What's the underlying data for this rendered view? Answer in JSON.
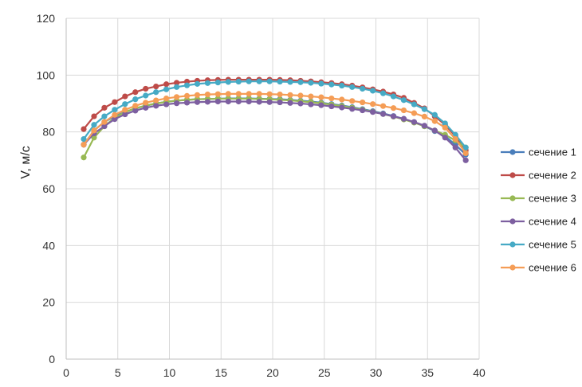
{
  "chart_data": {
    "type": "line",
    "title": "",
    "xlabel": "",
    "ylabel": "V, м/с",
    "xlim": [
      0,
      40
    ],
    "ylim": [
      0,
      120
    ],
    "xticks": [
      0,
      5,
      10,
      15,
      20,
      25,
      30,
      35,
      40
    ],
    "yticks": [
      0,
      20,
      40,
      60,
      80,
      100,
      120
    ],
    "grid": "vertical and horizontal gridlines",
    "legend_position": "right",
    "x": [
      1.7,
      2.7,
      3.7,
      4.7,
      5.7,
      6.7,
      7.7,
      8.7,
      9.7,
      10.7,
      11.7,
      12.7,
      13.7,
      14.7,
      15.7,
      16.7,
      17.7,
      18.7,
      19.7,
      20.7,
      21.7,
      22.7,
      23.7,
      24.7,
      25.7,
      26.7,
      27.7,
      28.7,
      29.7,
      30.7,
      31.7,
      32.7,
      33.7,
      34.7,
      35.7,
      36.7,
      37.7,
      38.7
    ],
    "series": [
      {
        "name": "сечение 1",
        "color": "#4a7ebb",
        "values": [
          75.5,
          80.5,
          83.5,
          85.5,
          87,
          88.3,
          89.2,
          90,
          90.6,
          91,
          91.3,
          91.5,
          91.6,
          91.7,
          91.8,
          91.8,
          91.8,
          91.7,
          91.6,
          91.5,
          91.3,
          91,
          90.7,
          90.3,
          89.8,
          89.3,
          88.7,
          88,
          87.3,
          86.5,
          85.6,
          84.6,
          83.4,
          82,
          80.3,
          78.5,
          75.5,
          72
        ]
      },
      {
        "name": "сечение 2",
        "color": "#be4b48",
        "values": [
          81,
          85.5,
          88.5,
          90.5,
          92.5,
          94,
          95.2,
          96,
          96.8,
          97.3,
          97.7,
          98,
          98.2,
          98.3,
          98.4,
          98.4,
          98.4,
          98.4,
          98.4,
          98.3,
          98.2,
          98,
          97.8,
          97.5,
          97.2,
          96.8,
          96.3,
          95.7,
          95,
          94.2,
          93.2,
          92,
          90.2,
          88.3,
          85.5,
          82.5,
          78.5,
          73.5
        ]
      },
      {
        "name": "сечение 3",
        "color": "#98b954",
        "values": [
          71,
          78,
          82,
          85,
          87,
          88.3,
          89.3,
          90,
          90.6,
          91,
          91.3,
          91.5,
          91.6,
          91.7,
          91.7,
          91.7,
          91.7,
          91.6,
          91.5,
          91.3,
          91.1,
          90.8,
          90.5,
          90.1,
          89.6,
          89.1,
          88.5,
          87.8,
          87.1,
          86.3,
          85.4,
          84.4,
          83.3,
          82,
          80.5,
          79,
          77,
          74.5
        ]
      },
      {
        "name": "сечение 4",
        "color": "#7d5fa0",
        "values": [
          75.5,
          79.5,
          82,
          84.5,
          86.2,
          87.5,
          88.5,
          89.2,
          89.7,
          90.1,
          90.3,
          90.5,
          90.6,
          90.7,
          90.7,
          90.7,
          90.7,
          90.6,
          90.5,
          90.4,
          90.2,
          90,
          89.7,
          89.4,
          89,
          88.6,
          88.1,
          87.6,
          87,
          86.3,
          85.5,
          84.6,
          83.5,
          82.2,
          80.5,
          78,
          74.5,
          70
        ]
      },
      {
        "name": "сечение 5",
        "color": "#46aac5",
        "values": [
          77.5,
          82.5,
          85.5,
          87.8,
          89.8,
          91.5,
          92.8,
          94,
          95,
          95.8,
          96.4,
          96.9,
          97.2,
          97.4,
          97.6,
          97.7,
          97.8,
          97.8,
          97.8,
          97.7,
          97.6,
          97.5,
          97.3,
          97,
          96.7,
          96.3,
          95.8,
          95.2,
          94.5,
          93.6,
          92.5,
          91.2,
          89.7,
          88,
          86,
          83,
          79,
          74.5
        ]
      },
      {
        "name": "сечение 6",
        "color": "#f59d56",
        "values": [
          75.5,
          80.5,
          83.5,
          86,
          87.8,
          89.2,
          90.3,
          91.1,
          91.8,
          92.3,
          92.7,
          93,
          93.2,
          93.3,
          93.4,
          93.4,
          93.4,
          93.4,
          93.3,
          93.2,
          93,
          92.8,
          92.5,
          92.2,
          91.8,
          91.4,
          90.9,
          90.4,
          89.8,
          89.1,
          88.4,
          87.6,
          86.6,
          85.4,
          83.8,
          81.5,
          77.5,
          72.5
        ]
      }
    ]
  }
}
